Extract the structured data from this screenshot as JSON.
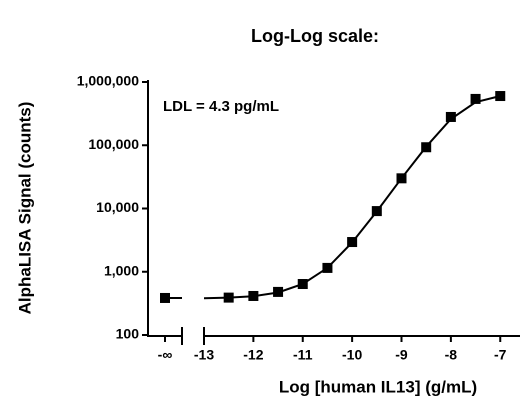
{
  "chart_data": {
    "type": "scatter",
    "title": "Log-Log scale:",
    "x_label": "Log [human IL13] (g/mL)",
    "y_label": "AlphaLISA Signal (counts)",
    "annotation": "LDL = 4.3 pg/mL",
    "color": "#000000",
    "x": [
      -12.5,
      -12,
      -11.5,
      -11,
      -10.5,
      -10,
      -9.5,
      -9,
      -8.5,
      -8,
      -7.5,
      -7
    ],
    "values": [
      390,
      414,
      480,
      640,
      1150,
      2950,
      9100,
      30000,
      93000,
      280000,
      540000,
      600000
    ],
    "zero_dose": {
      "label": "-∞",
      "value": 385
    },
    "curve": {
      "x": [
        -13,
        -12.5,
        -12,
        -11.5,
        -11,
        -10.5,
        -10,
        -9.5,
        -9,
        -8.5,
        -8,
        -7.5,
        -7
      ],
      "values": [
        380,
        390,
        410,
        470,
        640,
        1150,
        2900,
        9000,
        30000,
        95000,
        260000,
        480000,
        600000
      ]
    },
    "xlim": [
      -13,
      -6.6
    ],
    "xticks": [
      -13,
      -12,
      -11,
      -10,
      -9,
      -8,
      -7
    ],
    "ylim": [
      100,
      1000000
    ],
    "ylog": true,
    "yticks": [
      100,
      {
        "value": 1000,
        "label": "1,000"
      },
      {
        "value": 10000,
        "label": "10,000"
      },
      {
        "value": 100000,
        "label": "100,000"
      },
      {
        "value": 1000000,
        "label": "1,000,000"
      }
    ]
  }
}
